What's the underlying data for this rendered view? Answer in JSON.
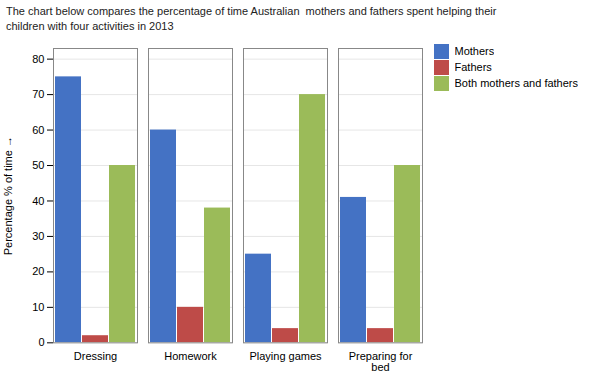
{
  "chart_data": {
    "type": "bar",
    "title": "The chart below compares the percentage of time Australian  mothers and fathers spent helping their\nchildren with four activities in 2013",
    "categories": [
      "Dressing",
      "Homework",
      "Playing games",
      "Preparing for\nbed"
    ],
    "series": [
      {
        "name": "Mothers",
        "color": "#4472C4",
        "values": [
          75,
          60,
          25,
          41
        ]
      },
      {
        "name": "Fathers",
        "color": "#BE4B48",
        "values": [
          2,
          10,
          4,
          4
        ]
      },
      {
        "name": "Both mothers and fathers",
        "color": "#9BBB59",
        "values": [
          50,
          38,
          70,
          50
        ]
      }
    ],
    "ylabel": "Percentage % of time",
    "ylim": [
      0,
      83
    ],
    "yticks": [
      0,
      10,
      20,
      30,
      40,
      50,
      60,
      70,
      80
    ],
    "grid": true,
    "legend": "right"
  }
}
